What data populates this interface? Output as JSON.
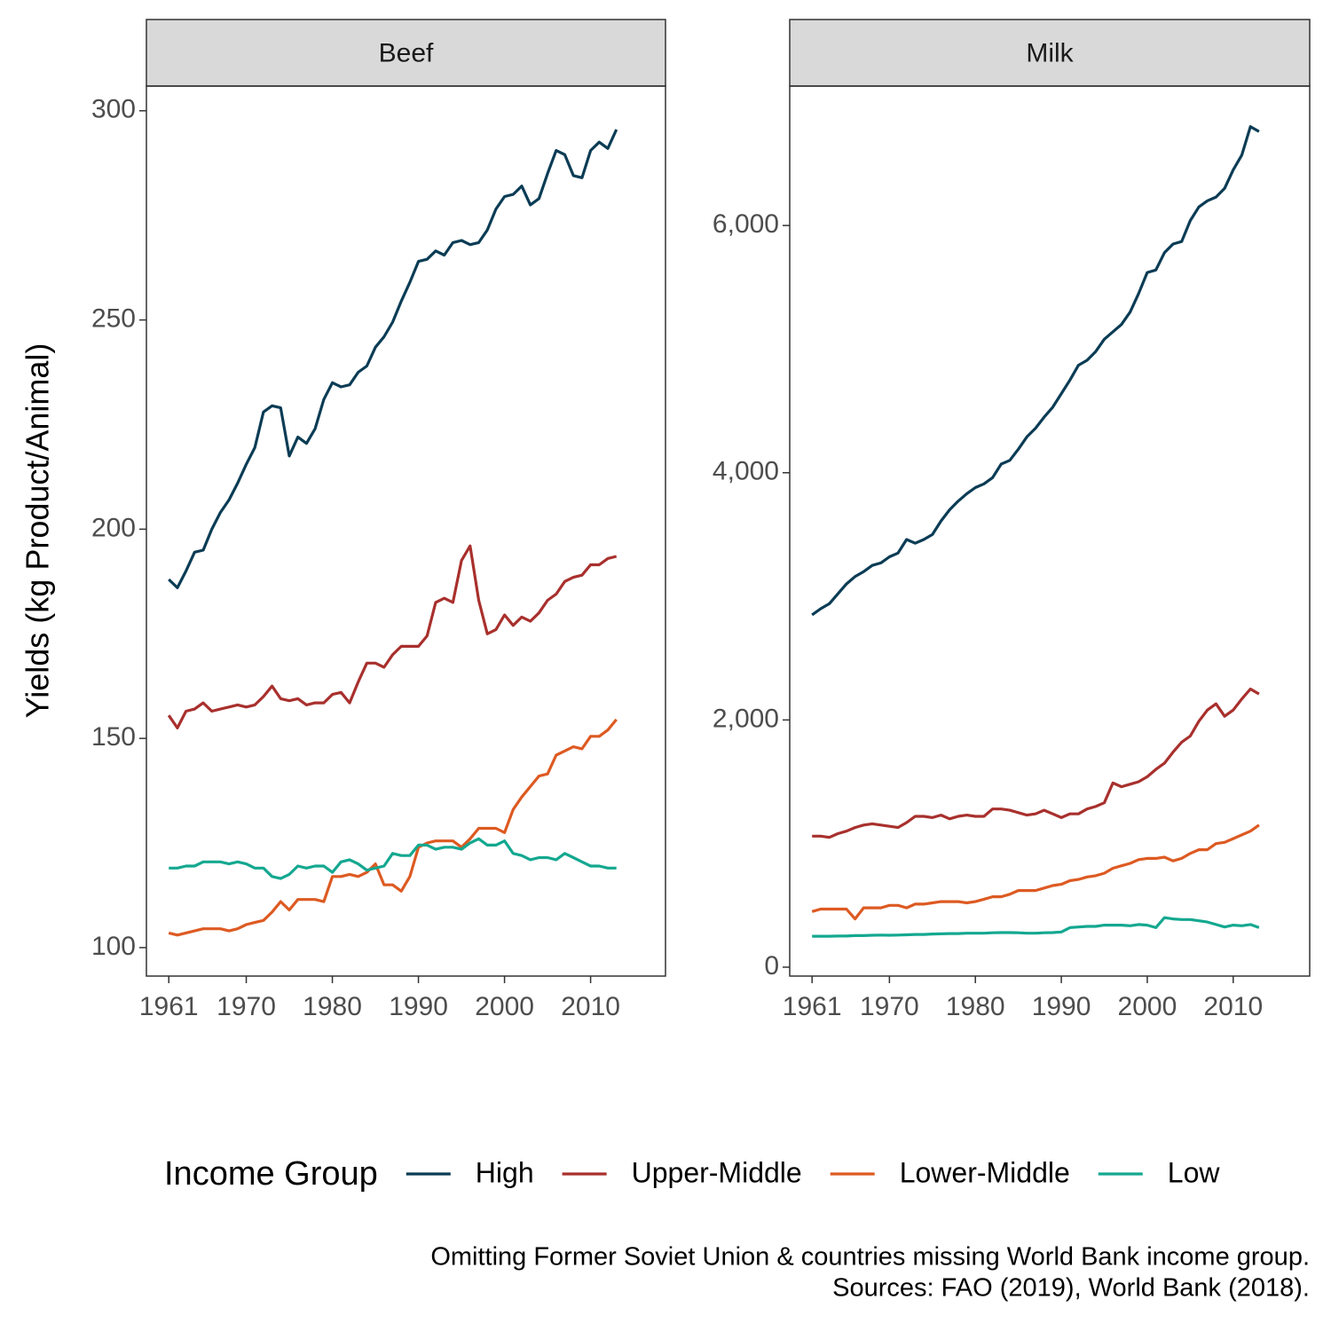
{
  "chart_data": [
    {
      "type": "line",
      "title": "Beef",
      "x": [
        1961,
        1962,
        1963,
        1964,
        1965,
        1966,
        1967,
        1968,
        1969,
        1970,
        1971,
        1972,
        1973,
        1974,
        1975,
        1976,
        1977,
        1978,
        1979,
        1980,
        1981,
        1982,
        1983,
        1984,
        1985,
        1986,
        1987,
        1988,
        1989,
        1990,
        1991,
        1992,
        1993,
        1994,
        1995,
        1996,
        1997,
        1998,
        1999,
        2000,
        2001,
        2002,
        2003,
        2004,
        2005,
        2006,
        2007,
        2008,
        2009,
        2010,
        2011,
        2012,
        2013
      ],
      "series": [
        {
          "name": "High",
          "color": "#0b3c55",
          "values": [
            188,
            186,
            190,
            194.5,
            195,
            200,
            204,
            207,
            211,
            215.5,
            219.5,
            228,
            229.5,
            229,
            217.5,
            222,
            220.5,
            224,
            231,
            235,
            234,
            234.5,
            237.5,
            239,
            243.5,
            246,
            249.5,
            254.5,
            259,
            264,
            264.5,
            266.5,
            265.5,
            268.5,
            269,
            268,
            268.5,
            271.5,
            276.5,
            279.5,
            280,
            282,
            277.5,
            279,
            285,
            290.5,
            289.5,
            284.5,
            284,
            290.5,
            292.5,
            291,
            295.5
          ]
        },
        {
          "name": "Upper-Middle",
          "color": "#a8302d",
          "values": [
            155.5,
            152.5,
            156.5,
            157,
            158.5,
            156.5,
            157,
            157.5,
            158,
            157.5,
            158,
            160,
            162.5,
            159.5,
            159,
            159.5,
            158,
            158.5,
            158.5,
            160.5,
            161,
            158.5,
            163.5,
            168,
            168,
            167,
            170,
            172,
            172,
            172,
            174.5,
            182.5,
            183.5,
            182.5,
            192.5,
            196,
            183,
            175,
            176,
            179.5,
            177,
            179,
            178,
            180,
            183,
            184.5,
            187.5,
            188.5,
            189,
            191.5,
            191.5,
            193,
            193.5
          ]
        },
        {
          "name": "Lower-Middle",
          "color": "#dd5a22",
          "values": [
            103.5,
            103,
            103.5,
            104,
            104.5,
            104.5,
            104.5,
            104,
            104.5,
            105.5,
            106,
            106.5,
            108.5,
            111,
            109,
            111.5,
            111.5,
            111.5,
            111,
            117,
            117,
            117.5,
            117,
            118,
            120,
            115,
            115,
            113.5,
            117,
            124,
            125,
            125.5,
            125.5,
            125.5,
            124,
            126,
            128.5,
            128.5,
            128.5,
            127.5,
            133,
            136,
            138.5,
            141,
            141.5,
            146,
            147,
            148,
            147.5,
            150.5,
            150.5,
            152,
            154.5
          ]
        },
        {
          "name": "Low",
          "color": "#14a890",
          "values": [
            119,
            119,
            119.5,
            119.5,
            120.5,
            120.5,
            120.5,
            120,
            120.5,
            120,
            119,
            119,
            117,
            116.5,
            117.5,
            119.5,
            119,
            119.5,
            119.5,
            118,
            120.5,
            121,
            120,
            118.5,
            119,
            119.5,
            122.5,
            122,
            122,
            124.5,
            124.5,
            123.5,
            124,
            124,
            123.5,
            125,
            126,
            124.5,
            124.5,
            125.5,
            122.5,
            122,
            121,
            121.5,
            121.5,
            121,
            122.5,
            121.5,
            120.5,
            119.5,
            119.5,
            119,
            119
          ]
        }
      ],
      "xlim": [
        1958.4,
        2018.7
      ],
      "xticks": [
        1961,
        1970,
        1980,
        1990,
        2000,
        2010
      ],
      "ylim": [
        93.2,
        305.9
      ],
      "yticks": [
        100,
        150,
        200,
        250,
        300
      ]
    },
    {
      "type": "line",
      "title": "Milk",
      "x": [
        1961,
        1962,
        1963,
        1964,
        1965,
        1966,
        1967,
        1968,
        1969,
        1970,
        1971,
        1972,
        1973,
        1974,
        1975,
        1976,
        1977,
        1978,
        1979,
        1980,
        1981,
        1982,
        1983,
        1984,
        1985,
        1986,
        1987,
        1988,
        1989,
        1990,
        1991,
        1992,
        1993,
        1994,
        1995,
        1996,
        1997,
        1998,
        1999,
        2000,
        2001,
        2002,
        2003,
        2004,
        2005,
        2006,
        2007,
        2008,
        2009,
        2010,
        2011,
        2012,
        2013
      ],
      "series": [
        {
          "values": [
            2850,
            2900,
            2940,
            3020,
            3100,
            3160,
            3200,
            3250,
            3270,
            3320,
            3350,
            3460,
            3430,
            3460,
            3500,
            3610,
            3700,
            3770,
            3830,
            3880,
            3910,
            3960,
            4070,
            4100,
            4190,
            4290,
            4360,
            4450,
            4530,
            4640,
            4750,
            4870,
            4910,
            4980,
            5080,
            5140,
            5200,
            5300,
            5450,
            5620,
            5640,
            5780,
            5850,
            5870,
            6040,
            6150,
            6200,
            6230,
            6300,
            6450,
            6570,
            6800,
            6760
          ]
        },
        {
          "values": [
            1060,
            1060,
            1050,
            1080,
            1100,
            1130,
            1150,
            1160,
            1150,
            1140,
            1130,
            1170,
            1220,
            1220,
            1210,
            1230,
            1200,
            1220,
            1230,
            1220,
            1220,
            1280,
            1280,
            1270,
            1250,
            1230,
            1240,
            1270,
            1240,
            1210,
            1240,
            1240,
            1280,
            1300,
            1330,
            1490,
            1460,
            1480,
            1500,
            1540,
            1600,
            1650,
            1740,
            1820,
            1870,
            1990,
            2080,
            2130,
            2030,
            2080,
            2170,
            2250,
            2210
          ]
        },
        {
          "values": [
            450,
            470,
            470,
            470,
            470,
            390,
            480,
            480,
            480,
            500,
            500,
            480,
            510,
            510,
            520,
            530,
            530,
            530,
            520,
            530,
            550,
            570,
            570,
            590,
            620,
            620,
            620,
            640,
            660,
            670,
            700,
            710,
            730,
            740,
            760,
            800,
            820,
            840,
            870,
            880,
            880,
            890,
            860,
            880,
            920,
            950,
            950,
            1000,
            1010,
            1040,
            1070,
            1100,
            1150
          ]
        },
        {
          "values": [
            250,
            250,
            250,
            252,
            252,
            255,
            255,
            258,
            260,
            258,
            260,
            262,
            265,
            265,
            268,
            270,
            272,
            272,
            275,
            275,
            275,
            278,
            280,
            280,
            278,
            275,
            275,
            278,
            280,
            285,
            320,
            325,
            330,
            330,
            340,
            340,
            340,
            335,
            345,
            340,
            320,
            400,
            390,
            385,
            385,
            375,
            365,
            345,
            325,
            340,
            335,
            345,
            320
          ]
        }
      ],
      "xlim": [
        1958.4,
        2018.9
      ],
      "xticks": [
        1961,
        1970,
        1980,
        1990,
        2000,
        2010
      ],
      "ylim": [
        -72,
        7128
      ],
      "yticks": [
        0,
        {
          "value": 2000,
          "label": "2,000"
        },
        {
          "value": 4000,
          "label": "4,000"
        },
        {
          "value": 6000,
          "label": "6,000"
        }
      ]
    }
  ],
  "ylabel": "Yields (kg Product/Animal)",
  "legend": {
    "title": "Income Group",
    "position": "bottom"
  },
  "caption": [
    "Omitting Former Soviet Union & countries missing World Bank income group.",
    "Sources: FAO (2019), World Bank (2018)."
  ]
}
